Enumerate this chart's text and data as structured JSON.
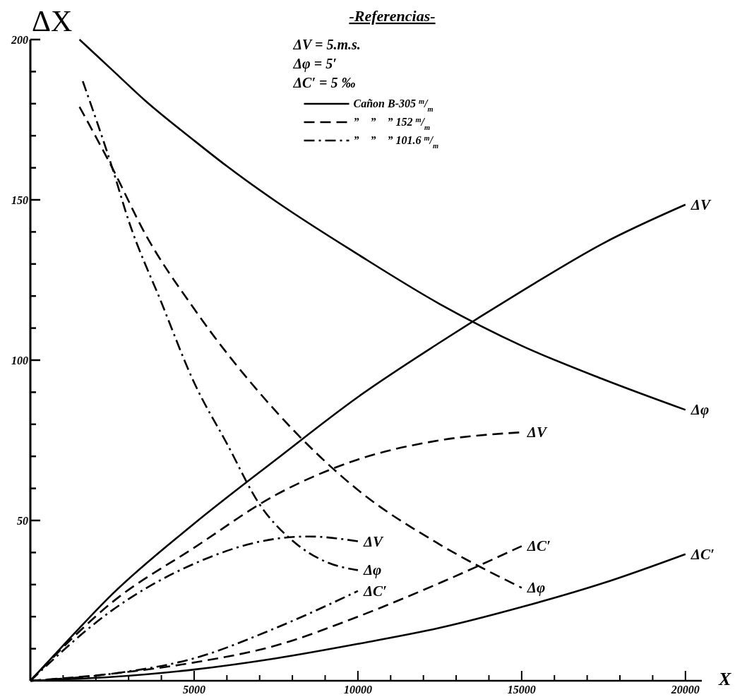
{
  "chart_data": {
    "type": "line",
    "xlabel": "X",
    "ylabel": "ΔX",
    "legend_title": "-Referencias-",
    "legend": "top",
    "xlim": [
      0,
      20500
    ],
    "ylim": [
      0,
      200
    ],
    "xticks": [
      {
        "value": 1000,
        "label": null
      },
      {
        "value": 2000,
        "label": null
      },
      {
        "value": 3000,
        "label": null
      },
      {
        "value": 4000,
        "label": null
      },
      5000,
      {
        "value": 6000,
        "label": null
      },
      {
        "value": 7000,
        "label": null
      },
      {
        "value": 8000,
        "label": null
      },
      {
        "value": 9000,
        "label": null
      },
      10000,
      {
        "value": 11000,
        "label": null
      },
      {
        "value": 12000,
        "label": null
      },
      {
        "value": 13000,
        "label": null
      },
      {
        "value": 14000,
        "label": null
      },
      15000,
      {
        "value": 16000,
        "label": null
      },
      {
        "value": 17000,
        "label": null
      },
      {
        "value": 18000,
        "label": null
      },
      {
        "value": 19000,
        "label": null
      },
      20000
    ],
    "yticks": [
      {
        "value": 10,
        "label": null
      },
      {
        "value": 20,
        "label": null
      },
      {
        "value": 30,
        "label": null
      },
      {
        "value": 40,
        "label": null
      },
      50,
      {
        "value": 60,
        "label": null
      },
      {
        "value": 70,
        "label": null
      },
      {
        "value": 80,
        "label": null
      },
      {
        "value": 90,
        "label": null
      },
      100,
      {
        "value": 110,
        "label": null
      },
      {
        "value": 120,
        "label": null
      },
      {
        "value": 130,
        "label": null
      },
      {
        "value": 140,
        "label": null
      },
      150,
      {
        "value": 160,
        "label": null
      },
      {
        "value": 170,
        "label": null
      },
      {
        "value": 180,
        "label": null
      },
      {
        "value": 190,
        "label": null
      },
      200
    ],
    "series": [
      {
        "name": "Cañon B-305 $^{m}$/$_{m}$",
        "color": "#000000",
        "line_style": "solid",
        "x": [
          0,
          1000,
          2500,
          5000,
          7500,
          10000,
          12500,
          15000,
          17500,
          20000
        ],
        "values": [
          0,
          11,
          27,
          49,
          69,
          88.5,
          105.5,
          121.5,
          136.5,
          148.5
        ]
      },
      {
        "color": "#000000",
        "line_style": "solid",
        "x": [
          1500,
          2500,
          3500,
          5000,
          6000,
          7500,
          10000,
          12500,
          15000,
          17500,
          20000
        ],
        "values": [
          200,
          190.5,
          181,
          168.5,
          160.5,
          149.5,
          133,
          117.5,
          104.5,
          94,
          84.5
        ]
      },
      {
        "color": "#000000",
        "line_style": "solid",
        "x": [
          0,
          2500,
          5000,
          7500,
          10000,
          12500,
          15000,
          17500,
          20000
        ],
        "values": [
          0,
          1.2,
          3.5,
          7,
          11.5,
          16.5,
          23,
          30.5,
          39.5
        ]
      },
      {
        "name": "”    ”    ” 152 $^{m}$/$_{m}$",
        "color": "#000000",
        "line_style": "dashed",
        "x": [
          0,
          2500,
          5000,
          7500,
          10000,
          12500,
          15000
        ],
        "values": [
          0,
          24.5,
          41.5,
          58,
          69,
          75,
          77.5
        ]
      },
      {
        "color": "#000000",
        "line_style": "dashed",
        "x": [
          1500,
          2500,
          3500,
          5000,
          7500,
          10000,
          12500,
          15000
        ],
        "values": [
          179,
          160,
          139.5,
          116,
          84,
          59.5,
          42.5,
          29
        ]
      },
      {
        "color": "#000000",
        "line_style": "dashed",
        "x": [
          0,
          2500,
          5000,
          7500,
          10000,
          12500,
          15000
        ],
        "values": [
          0,
          2.2,
          5.7,
          11,
          20,
          30.5,
          42
        ]
      },
      {
        "name": "”    ”    ” 101.6 $^{m}$/$_{m}$",
        "color": "#000000",
        "line_style": "dashdot",
        "x": [
          0,
          2500,
          5000,
          7500,
          8500,
          10000
        ],
        "values": [
          0,
          22,
          36.5,
          44.3,
          45,
          43.5
        ]
      },
      {
        "color": "#000000",
        "line_style": "dashdot",
        "x": [
          1600,
          2500,
          3000,
          4000,
          5000,
          6000,
          7000,
          8000,
          9000,
          10000
        ],
        "values": [
          187,
          160,
          143.5,
          118,
          93,
          74,
          55,
          43.7,
          37.2,
          34.5
        ]
      },
      {
        "color": "#000000",
        "line_style": "dashdot",
        "x": [
          0,
          2500,
          5000,
          7500,
          10000
        ],
        "values": [
          0,
          2.2,
          7,
          16.5,
          28
        ]
      }
    ],
    "annotations": [
      "ΔV = 5.m.s.",
      "Δφ = 5′",
      "ΔC′ = 5 ‰",
      {
        "text": "ΔV",
        "x": 20000,
        "y": 148.5
      },
      {
        "text": "Δφ",
        "x": 20000,
        "y": 84.5
      },
      {
        "text": "ΔC′",
        "x": 20000,
        "y": 39.5
      },
      {
        "text": "ΔV",
        "x": 15000,
        "y": 77.5
      },
      {
        "text": "ΔC′",
        "x": 15000,
        "y": 42
      },
      {
        "text": "Δφ",
        "x": 15000,
        "y": 29
      },
      {
        "text": "ΔV",
        "x": 10000,
        "y": 43.5
      },
      {
        "text": "Δφ",
        "x": 10000,
        "y": 34.5
      },
      {
        "text": "ΔC′",
        "x": 10000,
        "y": 28
      }
    ]
  }
}
